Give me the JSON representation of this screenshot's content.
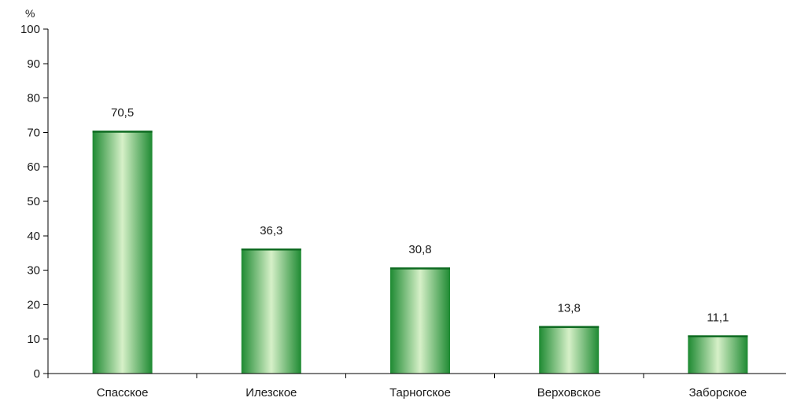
{
  "chart_data": {
    "type": "bar",
    "title": "",
    "xlabel": "",
    "ylabel": "%",
    "categories": [
      "Спасское",
      "Илезское",
      "Тарногское",
      "Верховское",
      "Заборское"
    ],
    "values": [
      70.5,
      36.3,
      30.8,
      13.8,
      11.1
    ],
    "data_labels": [
      "70,5",
      "36,3",
      "30,8",
      "13,8",
      "11,1"
    ],
    "ylim": [
      0,
      100
    ],
    "yticks": [
      0,
      10,
      20,
      30,
      40,
      50,
      60,
      70,
      80,
      90,
      100
    ],
    "grid": false,
    "legend": "none",
    "colors": {
      "bar_edge": "#1e8a32",
      "bar_mid": "#d6f0c8",
      "bar_top": "#0f6b22"
    }
  }
}
